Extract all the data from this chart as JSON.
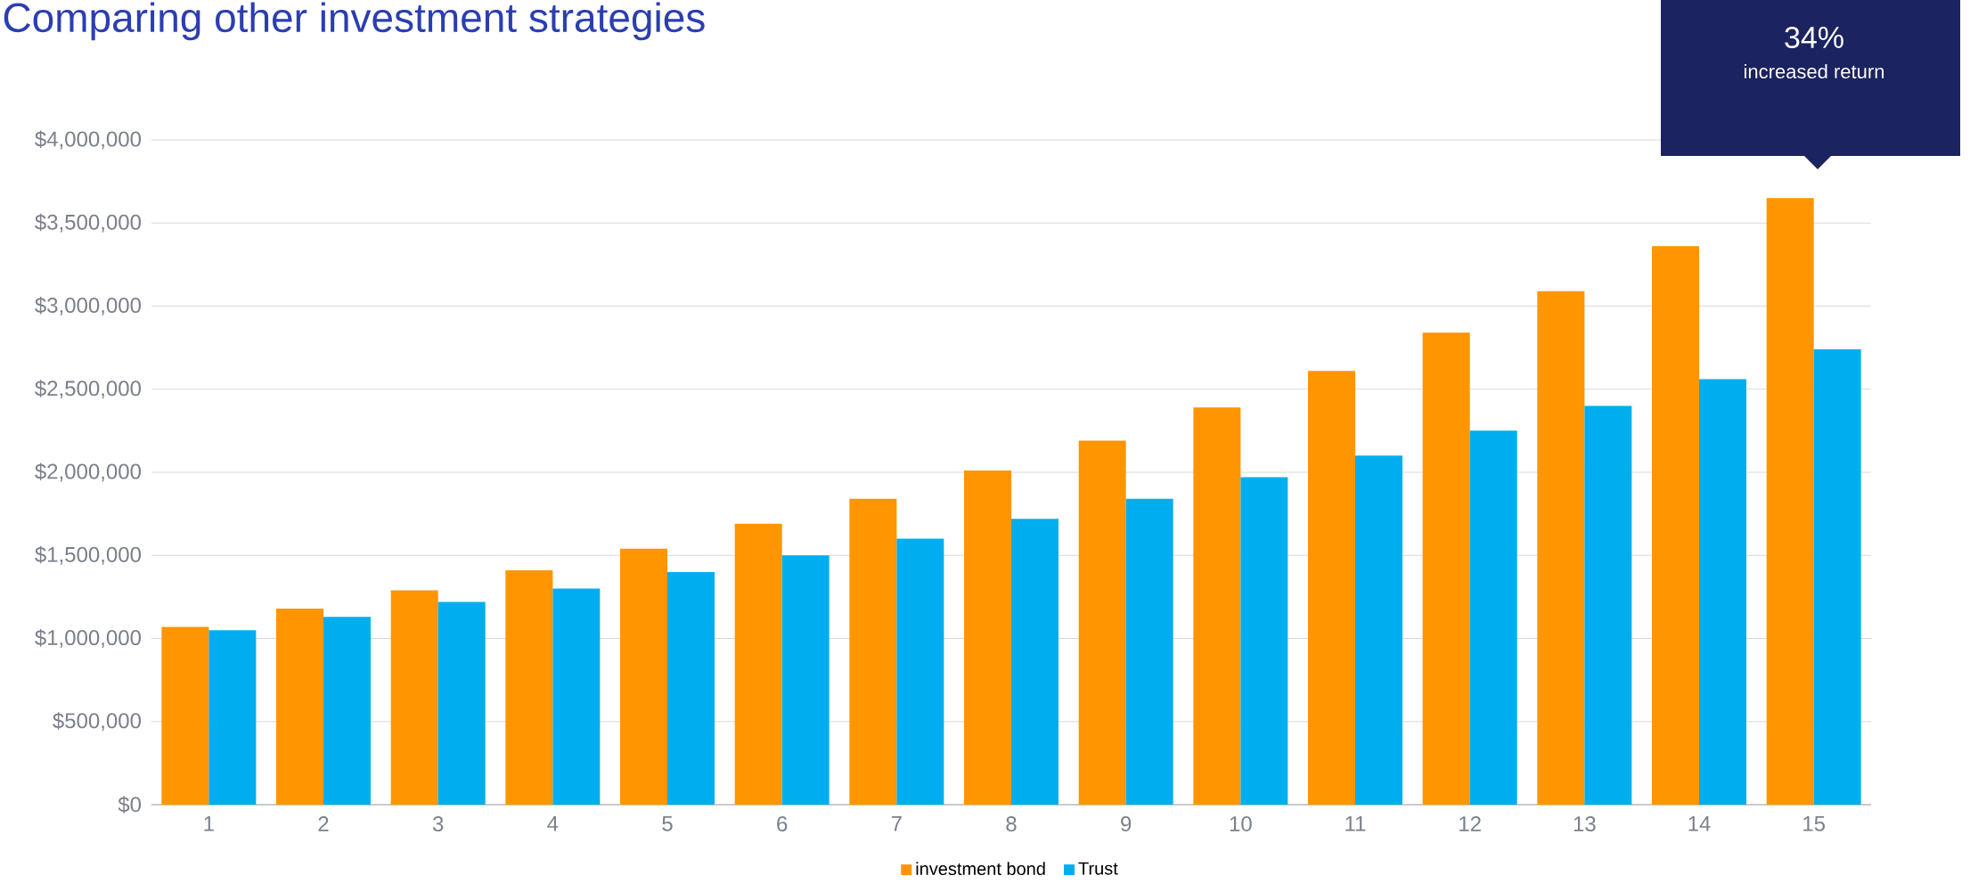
{
  "chart_data": {
    "type": "bar",
    "title": "Comparing other investment strategies",
    "categories": [
      "1",
      "2",
      "3",
      "4",
      "5",
      "6",
      "7",
      "8",
      "9",
      "10",
      "11",
      "12",
      "13",
      "14",
      "15"
    ],
    "series": [
      {
        "name": "investment bond",
        "color": "#ff9500",
        "values": [
          1070000,
          1180000,
          1290000,
          1410000,
          1540000,
          1690000,
          1840000,
          2010000,
          2190000,
          2390000,
          2610000,
          2840000,
          3090000,
          3360000,
          3650000
        ]
      },
      {
        "name": "Trust",
        "color": "#00aeef",
        "values": [
          1050000,
          1130000,
          1220000,
          1300000,
          1400000,
          1500000,
          1600000,
          1720000,
          1840000,
          1970000,
          2100000,
          2250000,
          2400000,
          2560000,
          2740000
        ]
      }
    ],
    "ylim": [
      0,
      4000000
    ],
    "yticks": [
      {
        "value": 0,
        "label": "$0"
      },
      {
        "value": 500000,
        "label": "$500,000"
      },
      {
        "value": 1000000,
        "label": "$1,000,000"
      },
      {
        "value": 1500000,
        "label": "$1,500,000"
      },
      {
        "value": 2000000,
        "label": "$2,000,000"
      },
      {
        "value": 2500000,
        "label": "$2,500,000"
      },
      {
        "value": 3000000,
        "label": "$3,000,000"
      },
      {
        "value": 3500000,
        "label": "$3,500,000"
      },
      {
        "value": 4000000,
        "label": "$4,000,000"
      }
    ],
    "grid": "y",
    "legend": "bottom",
    "annotations": [
      "34%",
      "increased return"
    ]
  }
}
